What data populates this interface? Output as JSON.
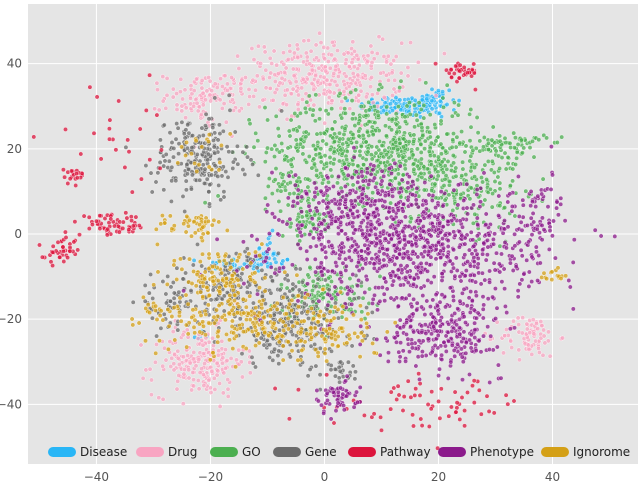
{
  "chart_data": {
    "type": "scatter",
    "title": "",
    "xlabel": "",
    "ylabel": "",
    "xlim": [
      -52,
      55
    ],
    "ylim": [
      -54,
      54
    ],
    "xticks": [
      -40,
      -20,
      0,
      20,
      40
    ],
    "yticks": [
      -40,
      -20,
      0,
      20,
      40
    ],
    "grid": true,
    "legend_position": "bottom",
    "series": [
      {
        "name": "Disease",
        "color": "#29b6f6",
        "clusters": [
          {
            "cx": 13,
            "cy": 30,
            "sx": 3.5,
            "sy": 1.2,
            "n": 90
          },
          {
            "cx": 19,
            "cy": 31,
            "sx": 2,
            "sy": 2,
            "n": 60
          },
          {
            "cx": -13,
            "cy": -7,
            "sx": 4,
            "sy": 0.8,
            "n": 60
          },
          {
            "cx": -10,
            "cy": -4,
            "sx": 1,
            "sy": 2,
            "n": 20
          },
          {
            "cx": -22,
            "cy": -24,
            "sx": 1,
            "sy": 0.5,
            "n": 5
          }
        ]
      },
      {
        "name": "Drug",
        "color": "#f8a5c2",
        "clusters": [
          {
            "cx": 0,
            "cy": 37,
            "sx": 7,
            "sy": 4,
            "n": 350
          },
          {
            "cx": -21,
            "cy": 32,
            "sx": 3.5,
            "sy": 3,
            "n": 120
          },
          {
            "cx": -22,
            "cy": -30,
            "sx": 4,
            "sy": 4,
            "n": 200
          },
          {
            "cx": 36,
            "cy": -24,
            "sx": 2.5,
            "sy": 2.5,
            "n": 80
          }
        ]
      },
      {
        "name": "GO",
        "color": "#4caf50",
        "clusters": [
          {
            "cx": 8,
            "cy": 20,
            "sx": 9,
            "sy": 6,
            "n": 650
          },
          {
            "cx": 23,
            "cy": 13,
            "sx": 6,
            "sy": 6,
            "n": 250
          },
          {
            "cx": 33,
            "cy": 21,
            "sx": 3,
            "sy": 1.5,
            "n": 60
          },
          {
            "cx": 0,
            "cy": -14,
            "sx": 4,
            "sy": 3.5,
            "n": 130
          },
          {
            "cx": -3,
            "cy": 3,
            "sx": 2.5,
            "sy": 2,
            "n": 60
          },
          {
            "cx": -5,
            "cy": 11,
            "sx": 2,
            "sy": 1.5,
            "n": 40
          }
        ]
      },
      {
        "name": "Gene",
        "color": "#6b6b6b",
        "clusters": [
          {
            "cx": -22,
            "cy": 18,
            "sx": 4,
            "sy": 5,
            "n": 220
          },
          {
            "cx": -16,
            "cy": -12,
            "sx": 4,
            "sy": 4,
            "n": 140
          },
          {
            "cx": -6,
            "cy": -21,
            "sx": 6,
            "sy": 5,
            "n": 260
          },
          {
            "cx": -27,
            "cy": -16,
            "sx": 3,
            "sy": 3,
            "n": 60
          },
          {
            "cx": 3,
            "cy": -32,
            "sx": 1.5,
            "sy": 1,
            "n": 25
          }
        ]
      },
      {
        "name": "Pathway",
        "color": "#dc143c",
        "clusters": [
          {
            "cx": 24,
            "cy": 38,
            "sx": 1.5,
            "sy": 1.2,
            "n": 45
          },
          {
            "cx": -37,
            "cy": 2,
            "sx": 3,
            "sy": 1.2,
            "n": 60
          },
          {
            "cx": -46,
            "cy": -4,
            "sx": 1.5,
            "sy": 1.5,
            "n": 40
          },
          {
            "cx": -44,
            "cy": 14,
            "sx": 1,
            "sy": 1,
            "n": 20
          },
          {
            "cx": 18,
            "cy": -40,
            "sx": 9,
            "sy": 3,
            "n": 70
          },
          {
            "cx": -36,
            "cy": 22,
            "sx": 6,
            "sy": 6,
            "n": 25
          }
        ]
      },
      {
        "name": "Phenotype",
        "color": "#8b1a8b",
        "clusters": [
          {
            "cx": 15,
            "cy": -3,
            "sx": 11,
            "sy": 7,
            "n": 950
          },
          {
            "cx": 6,
            "cy": 8,
            "sx": 6,
            "sy": 4,
            "n": 180
          },
          {
            "cx": 21,
            "cy": -23,
            "sx": 5,
            "sy": 4,
            "n": 260
          },
          {
            "cx": 2,
            "cy": -38,
            "sx": 2,
            "sy": 2,
            "n": 60
          },
          {
            "cx": 38,
            "cy": 4,
            "sx": 2.5,
            "sy": 5,
            "n": 60
          }
        ]
      },
      {
        "name": "Ignorome",
        "color": "#d4a017",
        "clusters": [
          {
            "cx": -15,
            "cy": -20,
            "sx": 6,
            "sy": 4,
            "n": 190
          },
          {
            "cx": -18,
            "cy": -10,
            "sx": 3.5,
            "sy": 3.5,
            "n": 110
          },
          {
            "cx": -23,
            "cy": 2,
            "sx": 3,
            "sy": 1.5,
            "n": 50
          },
          {
            "cx": 0,
            "cy": -22,
            "sx": 5,
            "sy": 4,
            "n": 120
          },
          {
            "cx": 40,
            "cy": -10,
            "sx": 1,
            "sy": 1,
            "n": 15
          },
          {
            "cx": -22,
            "cy": 18,
            "sx": 2,
            "sy": 3,
            "n": 20
          },
          {
            "cx": -30,
            "cy": -18,
            "sx": 2,
            "sy": 2,
            "n": 20
          }
        ]
      }
    ]
  }
}
